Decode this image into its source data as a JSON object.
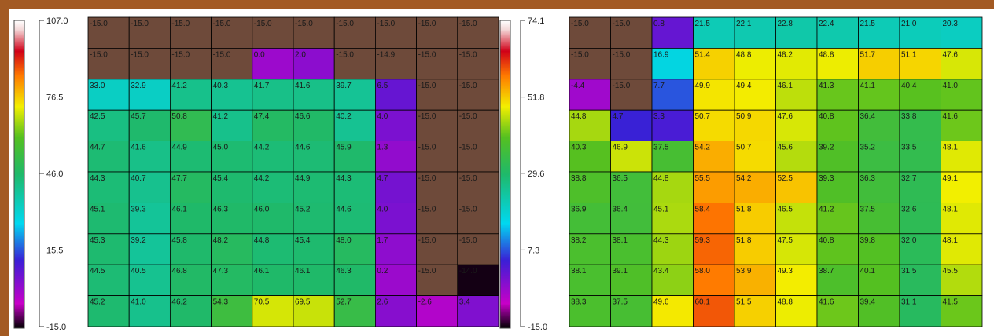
{
  "chart_data": [
    {
      "type": "heatmap",
      "scale": {
        "max": "107.0",
        "ticks": [
          "76.5",
          "46.0",
          "15.5"
        ],
        "min": "-15.0"
      },
      "rows": [
        [
          "-15.0",
          "-15.0",
          "-15.0",
          "-15.0",
          "-15.0",
          "-15.0",
          "-15.0",
          "-15.0",
          "-15.0",
          "-15.0"
        ],
        [
          "-15.0",
          "-15.0",
          "-15.0",
          "-15.0",
          "0.0",
          "2.0",
          "-15.0",
          "-14.9",
          "-15.0",
          "-15.0"
        ],
        [
          "33.0",
          "32.9",
          "41.2",
          "40.3",
          "41.7",
          "41.6",
          "39.7",
          "6.5",
          "-15.0",
          "-15.0"
        ],
        [
          "42.5",
          "45.7",
          "50.8",
          "41.2",
          "47.4",
          "46.6",
          "40.2",
          "4.0",
          "-15.0",
          "-15.0"
        ],
        [
          "44.7",
          "41.6",
          "44.9",
          "45.0",
          "44.2",
          "44.6",
          "45.9",
          "1.3",
          "-15.0",
          "-15.0"
        ],
        [
          "44.3",
          "40.7",
          "47.7",
          "45.4",
          "44.2",
          "44.9",
          "44.3",
          "4.7",
          "-15.0",
          "-15.0"
        ],
        [
          "45.1",
          "39.3",
          "46.1",
          "46.3",
          "46.0",
          "45.2",
          "44.6",
          "4.0",
          "-15.0",
          "-15.0"
        ],
        [
          "45.3",
          "39.2",
          "45.8",
          "48.2",
          "44.8",
          "45.4",
          "48.0",
          "1.7",
          "-15.0",
          "-15.0"
        ],
        [
          "44.5",
          "40.5",
          "46.8",
          "47.3",
          "46.1",
          "46.1",
          "46.3",
          "0.2",
          "-15.0",
          "-14.0"
        ],
        [
          "45.2",
          "41.0",
          "46.2",
          "54.3",
          "70.5",
          "69.5",
          "52.7",
          "2.6",
          "-2.6",
          "3.4"
        ]
      ]
    },
    {
      "type": "heatmap",
      "scale": {
        "max": "74.1",
        "ticks": [
          "51.8",
          "29.6",
          "7.3"
        ],
        "min": "-15.0"
      },
      "rows": [
        [
          "-15.0",
          "-15.0",
          "0.8",
          "21.5",
          "22.1",
          "22.8",
          "22.4",
          "21.5",
          "21.0",
          "20.3"
        ],
        [
          "-15.0",
          "-15.0",
          "16.9",
          "51.4",
          "48.8",
          "48.2",
          "48.8",
          "51.7",
          "51.1",
          "47.6"
        ],
        [
          "-4.4",
          "-15.0",
          "7.7",
          "49.9",
          "49.4",
          "46.1",
          "41.3",
          "41.1",
          "40.4",
          "41.0"
        ],
        [
          "44.8",
          "4.7",
          "3.3",
          "50.7",
          "50.9",
          "47.6",
          "40.8",
          "36.4",
          "33.8",
          "41.6"
        ],
        [
          "40.3",
          "46.9",
          "37.5",
          "54.2",
          "50.7",
          "45.6",
          "39.2",
          "35.2",
          "33.5",
          "48.1"
        ],
        [
          "38.8",
          "36.5",
          "44.8",
          "55.5",
          "54.2",
          "52.5",
          "39.3",
          "36.3",
          "32.7",
          "49.1"
        ],
        [
          "36.9",
          "36.4",
          "45.1",
          "58.4",
          "51.8",
          "46.5",
          "41.2",
          "37.5",
          "32.6",
          "48.1"
        ],
        [
          "38.2",
          "38.1",
          "44.3",
          "59.3",
          "51.8",
          "47.5",
          "40.8",
          "39.8",
          "32.0",
          "48.1"
        ],
        [
          "38.1",
          "39.1",
          "43.4",
          "58.0",
          "53.9",
          "49.3",
          "38.7",
          "40.1",
          "31.5",
          "45.5"
        ],
        [
          "38.3",
          "37.5",
          "49.6",
          "60.1",
          "51.5",
          "48.8",
          "41.6",
          "39.4",
          "31.1",
          "41.5"
        ]
      ]
    }
  ]
}
